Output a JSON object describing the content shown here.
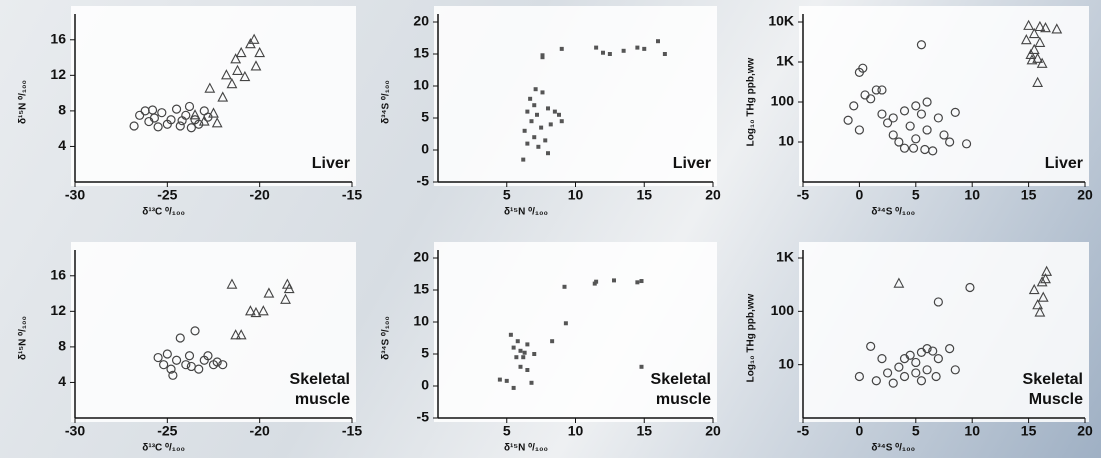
{
  "chart_data": [
    {
      "type": "scatter",
      "xlabel": "δ¹³C ⁰/₁₀₀",
      "ylabel": "δ¹⁵N ⁰/₁₀₀",
      "annotation": "Liver",
      "xlim": [
        -30,
        -15
      ],
      "ylim": [
        0,
        18
      ],
      "xticks": [
        -30,
        -25,
        -20,
        -15
      ],
      "yticks": [
        4,
        8,
        12,
        16
      ],
      "yscale": "linear",
      "series": [
        {
          "marker": "circle",
          "color": "#444444",
          "x": [
            -26.8,
            -26.5,
            -26.2,
            -26,
            -25.7,
            -25.5,
            -25.3,
            -25,
            -24.8,
            -24.5,
            -24.3,
            -24,
            -23.8,
            -23.5,
            -23.3,
            -23,
            -22.8,
            -25.8,
            -24.2,
            -23.7
          ],
          "values": [
            6.3,
            7.5,
            8.0,
            6.8,
            7.2,
            6.2,
            7.8,
            6.5,
            7.0,
            8.2,
            6.3,
            7.5,
            8.5,
            7.0,
            6.5,
            8.0,
            7.3,
            8.1,
            6.9,
            6.1
          ]
        },
        {
          "marker": "triangle",
          "color": "#444444",
          "x": [
            -23.5,
            -23,
            -22.5,
            -22.3,
            -22,
            -21.8,
            -21.5,
            -21.2,
            -21,
            -20.8,
            -20.5,
            -20.3,
            -20.2,
            -20,
            -21.3,
            -22.7
          ],
          "values": [
            7.5,
            6.8,
            7.7,
            6.6,
            9.5,
            12,
            11,
            12.5,
            14.5,
            11.8,
            15.5,
            16,
            13,
            14.5,
            13.8,
            10.5
          ]
        }
      ]
    },
    {
      "type": "scatter",
      "xlabel": "δ¹⁵N ⁰/₁₀₀",
      "ylabel": "δ³⁴S ⁰/₁₀₀",
      "annotation": "Liver",
      "xlim": [
        0,
        20
      ],
      "ylim": [
        -5,
        20
      ],
      "xticks": [
        5,
        10,
        15,
        20
      ],
      "yticks": [
        -5,
        0,
        5,
        10,
        15,
        20
      ],
      "yscale": "linear",
      "series": [
        {
          "marker": "square",
          "color": "#555555",
          "x": [
            6.2,
            6.3,
            6.5,
            6.7,
            6.8,
            7,
            7,
            7.2,
            7.3,
            7.5,
            7.6,
            7.8,
            8,
            8,
            8.2,
            8.5,
            8.8,
            9,
            6.5,
            7.1,
            7.6,
            7.6,
            9,
            11.5,
            12,
            12.5,
            13.5,
            14.5,
            15,
            16,
            16.5
          ],
          "values": [
            -1.5,
            3,
            6,
            8,
            4.5,
            2,
            7,
            5.5,
            0.5,
            3.5,
            9,
            1.5,
            6.5,
            -0.5,
            4,
            6,
            5.5,
            4.5,
            1,
            9.5,
            14.5,
            14.8,
            15.8,
            16,
            15.2,
            15,
            15.5,
            16,
            15.8,
            17,
            15
          ]
        }
      ]
    },
    {
      "type": "scatter",
      "xlabel": "δ³⁴S ⁰/₁₀₀",
      "ylabel": "Log₁₀ THg ppb,ww",
      "annotation": "Liver",
      "xlim": [
        -5,
        20
      ],
      "ylim": [
        1,
        10000
      ],
      "xticks": [
        -5,
        0,
        5,
        10,
        15,
        20
      ],
      "yticks": [
        10,
        100,
        {
          "value": 1000,
          "label": "1K"
        },
        {
          "value": 10000,
          "label": "10K"
        }
      ],
      "yscale": "log",
      "series": [
        {
          "marker": "circle",
          "color": "#444444",
          "x": [
            -1,
            -0.5,
            0,
            0.3,
            0.5,
            0,
            1,
            1.5,
            2,
            2,
            2.5,
            3,
            3,
            3.5,
            4,
            4,
            4.5,
            5,
            5,
            5.5,
            5.5,
            6,
            6,
            6.5,
            7,
            7.5,
            8,
            8.5,
            9.5,
            4.8,
            5.8
          ],
          "values": [
            35,
            80,
            550,
            700,
            150,
            20,
            120,
            200,
            200,
            50,
            30,
            15,
            40,
            10,
            60,
            7,
            25,
            80,
            12,
            2700,
            50,
            100,
            20,
            6,
            40,
            15,
            10,
            55,
            9,
            7,
            6.5
          ]
        },
        {
          "marker": "triangle",
          "color": "#444444",
          "x": [
            15,
            15.5,
            16,
            16,
            16.5,
            17.5,
            15.2,
            15.8,
            16.2,
            15.5,
            15.8,
            14.8,
            15.3
          ],
          "values": [
            8000,
            5000,
            3000,
            7500,
            7000,
            6500,
            1500,
            1200,
            900,
            2000,
            300,
            3500,
            1100
          ]
        }
      ]
    },
    {
      "type": "scatter",
      "xlabel": "δ¹³C ⁰/₁₀₀",
      "ylabel": "δ¹⁵N ⁰/₁₀₀",
      "annotation": "Skeletal muscle",
      "xlim": [
        -30,
        -15
      ],
      "ylim": [
        0,
        18
      ],
      "xticks": [
        -30,
        -25,
        -20,
        -15
      ],
      "yticks": [
        4,
        8,
        12,
        16
      ],
      "yscale": "linear",
      "series": [
        {
          "marker": "circle",
          "color": "#444444",
          "x": [
            -25.5,
            -25.2,
            -25,
            -24.8,
            -24.5,
            -24.3,
            -24,
            -23.8,
            -23.5,
            -23.3,
            -23,
            -22.8,
            -22.5,
            -22.3,
            -22,
            -24.7,
            -23.7
          ],
          "values": [
            6.8,
            6.0,
            7.2,
            5.5,
            6.5,
            9.0,
            6.0,
            7.0,
            9.8,
            5.5,
            6.5,
            7.0,
            6.0,
            6.3,
            6.0,
            4.8,
            5.8
          ]
        },
        {
          "marker": "triangle",
          "color": "#444444",
          "x": [
            -21.5,
            -21.3,
            -21,
            -20.5,
            -20.2,
            -19.8,
            -19.5,
            -18.5,
            -18.4,
            -18.6
          ],
          "values": [
            15,
            9.3,
            9.3,
            12,
            11.8,
            12,
            14,
            15,
            14.5,
            13.3
          ]
        }
      ]
    },
    {
      "type": "scatter",
      "xlabel": "δ¹⁵N ⁰/₁₀₀",
      "ylabel": "δ³⁴S ⁰/₁₀₀",
      "annotation": "Skeletal muscle",
      "xlim": [
        0,
        20
      ],
      "ylim": [
        -5,
        20
      ],
      "xticks": [
        5,
        10,
        15,
        20
      ],
      "yticks": [
        -5,
        0,
        5,
        10,
        15,
        20
      ],
      "yscale": "linear",
      "series": [
        {
          "marker": "square",
          "color": "#555555",
          "x": [
            4.5,
            5,
            5.3,
            5.5,
            5.5,
            5.7,
            5.8,
            6,
            6,
            6.2,
            6.3,
            6.5,
            6.5,
            6.8,
            7,
            8.3,
            9.2,
            9.3,
            11.4,
            11.5,
            12.8,
            14.5,
            14.8,
            14.8
          ],
          "values": [
            1,
            0.8,
            8,
            6,
            -0.3,
            4.5,
            7,
            5.5,
            3,
            4.5,
            5.2,
            2.5,
            6.5,
            0.5,
            5,
            7,
            15.5,
            9.8,
            16,
            16.3,
            16.5,
            16.2,
            16.4,
            3
          ]
        }
      ]
    },
    {
      "type": "scatter",
      "xlabel": "δ³⁴S ⁰/₁₀₀",
      "ylabel": "Log₁₀ THg ppb,ww",
      "annotation": "Skeletal Muscle",
      "xlim": [
        -5,
        20
      ],
      "ylim": [
        1,
        1000
      ],
      "xticks": [
        -5,
        0,
        5,
        10,
        15,
        20
      ],
      "yticks": [
        10,
        100,
        {
          "value": 1000,
          "label": "1K"
        }
      ],
      "yscale": "log",
      "series": [
        {
          "marker": "circle",
          "color": "#444444",
          "x": [
            0,
            1,
            1.5,
            2,
            2.5,
            3,
            3.5,
            4,
            4,
            4.5,
            5,
            5,
            5.5,
            5.5,
            6,
            6,
            6.5,
            7,
            7,
            8,
            8.5,
            9.8,
            6.8
          ],
          "values": [
            6,
            22,
            5,
            13,
            7,
            4.5,
            9,
            13,
            6,
            15,
            11,
            7,
            17,
            5,
            20,
            8,
            18,
            150,
            13,
            20,
            8,
            280,
            6
          ]
        },
        {
          "marker": "triangle",
          "color": "#444444",
          "x": [
            3.5,
            15.5,
            15.8,
            16,
            16.2,
            16.5,
            16.6,
            16.3
          ],
          "values": [
            330,
            250,
            130,
            95,
            350,
            400,
            550,
            180
          ]
        }
      ]
    }
  ]
}
